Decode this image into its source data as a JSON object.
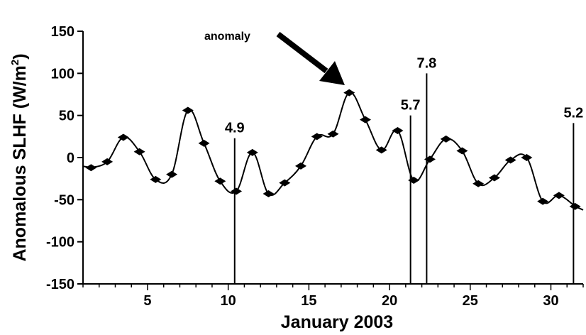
{
  "chart_data": {
    "type": "line",
    "xlabel": "January 2003",
    "ylabel_main": "Anomalous SLHF (W/m",
    "ylabel_sup": "2",
    "ylabel_close": ")",
    "xlim": [
      1,
      32
    ],
    "ylim": [
      -150,
      150
    ],
    "yticks": [
      150,
      100,
      50,
      0,
      -50,
      -100,
      -150
    ],
    "xticks": [
      5,
      10,
      15,
      20,
      25,
      30
    ],
    "series": [
      {
        "x": [
          1.5,
          2.5,
          3.5,
          4.5,
          5.5,
          6.5,
          7.5,
          8.5,
          9.5,
          10.5,
          11.5,
          12.5,
          13.5,
          14.5,
          15.5,
          16.5,
          17.5,
          18.5,
          19.5,
          20.5,
          21.5,
          22.5,
          23.5,
          24.5,
          25.5,
          26.5,
          27.5,
          28.5,
          29.5,
          30.5,
          31.5
        ],
        "values": [
          -12,
          -5,
          24,
          7,
          -26,
          -20,
          56,
          17,
          -28,
          -40,
          6,
          -43,
          -30,
          -10,
          25,
          28,
          77,
          45,
          9,
          32,
          -27,
          -2,
          22,
          8,
          -31,
          -24,
          -3,
          0,
          -52,
          -45,
          -58
        ]
      }
    ],
    "annotation_lines": [
      {
        "x": 10.4,
        "top": 23,
        "label": "4.9"
      },
      {
        "x": 21.3,
        "top": 50,
        "label": "5.7"
      },
      {
        "x": 22.3,
        "top": 100,
        "label": "7.8"
      },
      {
        "x": 31.4,
        "top": 41,
        "label": "5.2"
      }
    ],
    "arrow": {
      "label": "anomaly",
      "points_to": [
        17.5,
        77
      ]
    }
  }
}
